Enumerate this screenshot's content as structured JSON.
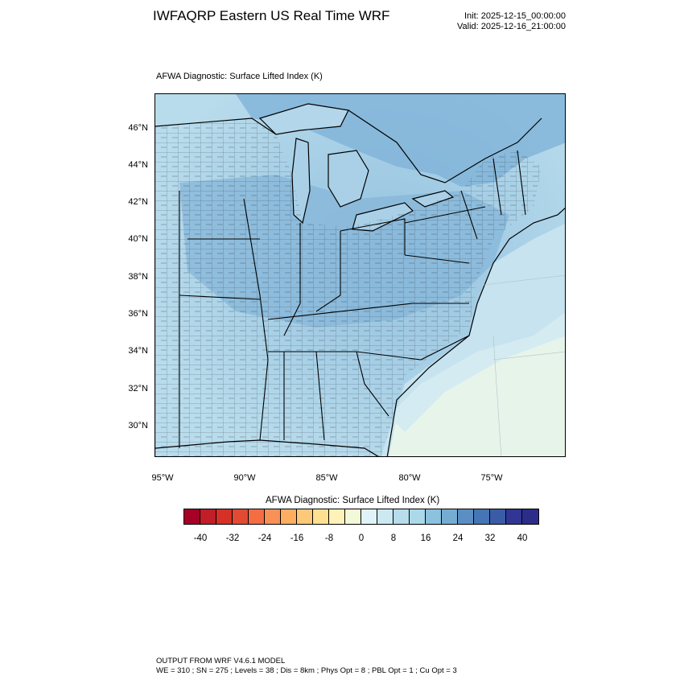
{
  "header": {
    "title": "IWFAQRP Eastern US Real Time WRF",
    "init": "Init: 2025-12-15_00:00:00",
    "valid": "Valid: 2025-12-16_21:00:00"
  },
  "plot": {
    "subtitle": "AFWA Diagnostic: Surface Lifted Index   (K)",
    "lat_labels": [
      "46°N",
      "44°N",
      "42°N",
      "40°N",
      "38°N",
      "36°N",
      "34°N",
      "32°N",
      "30°N"
    ],
    "lon_labels": [
      "95°W",
      "90°W",
      "85°W",
      "80°W",
      "75°W"
    ]
  },
  "colorbar": {
    "title": "AFWA Diagnostic: Surface Lifted Index  (K)",
    "tick_labels": [
      "-40",
      "-32",
      "-24",
      "-16",
      "-8",
      "0",
      "8",
      "16",
      "24",
      "32",
      "40"
    ],
    "colors": [
      "#a50026",
      "#c11e27",
      "#d73027",
      "#e34a33",
      "#f46d43",
      "#f99157",
      "#fdae61",
      "#fec879",
      "#fee090",
      "#fef2b8",
      "#f2f9d8",
      "#e0f3f8",
      "#cce9f1",
      "#b7dceb",
      "#abd9e9",
      "#8cc2de",
      "#74add1",
      "#5b8fc4",
      "#4575b4",
      "#3a5ca7",
      "#313695"
    ],
    "colors_extra": [
      "#2c2d8a"
    ]
  },
  "footer": {
    "line1": "OUTPUT FROM WRF V4.6.1 MODEL",
    "line2": "WE = 310 ; SN = 275 ; Levels = 38 ; Dis = 8km ; Phys Opt = 8 ; PBL Opt = 1 ; Cu Opt = 3"
  }
}
